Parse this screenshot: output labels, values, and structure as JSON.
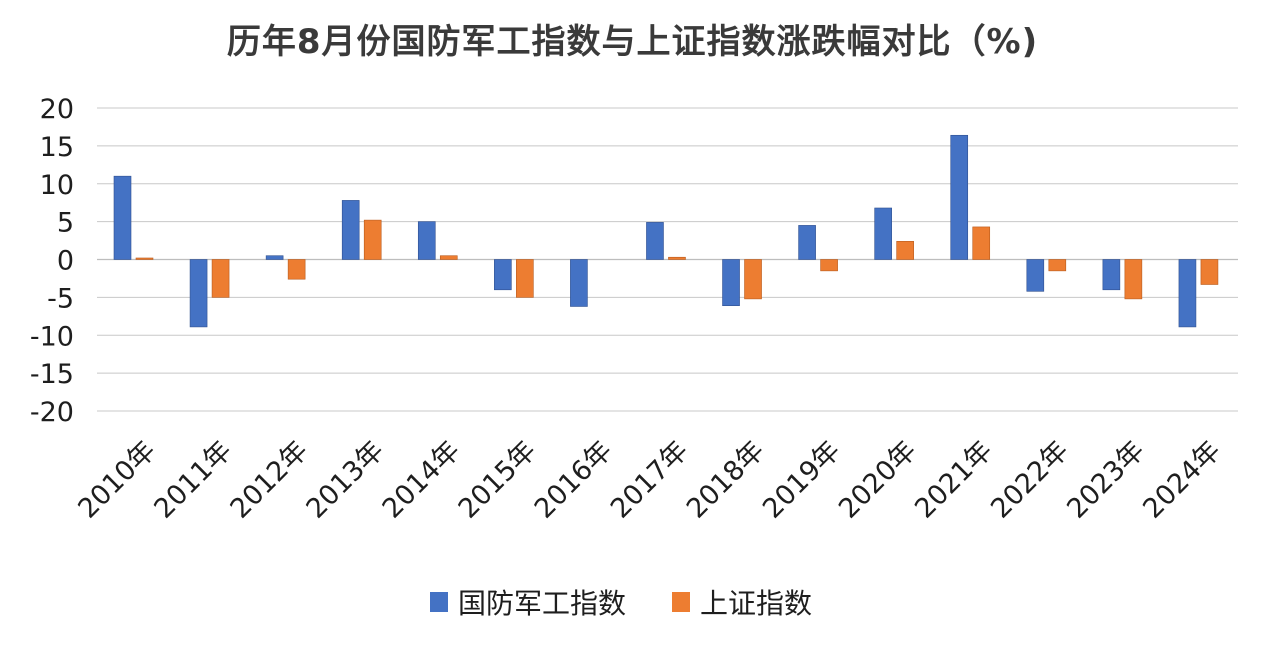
{
  "chart_data": {
    "type": "bar",
    "title": "历年8月份国防军工指数与上证指数涨跌幅对比（%)",
    "categories": [
      "2010年",
      "2011年",
      "2012年",
      "2013年",
      "2014年",
      "2015年",
      "2016年",
      "2017年",
      "2018年",
      "2019年",
      "2020年",
      "2021年",
      "2022年",
      "2023年",
      "2024年"
    ],
    "series": [
      {
        "name": "国防军工指数",
        "color": "#4472C4",
        "values": [
          11.0,
          -8.9,
          0.5,
          7.8,
          5.0,
          -4.0,
          -6.2,
          4.9,
          -6.1,
          4.5,
          6.8,
          16.4,
          -4.2,
          -4.0,
          -8.9
        ]
      },
      {
        "name": "上证指数",
        "color": "#ED7D31",
        "values": [
          0.2,
          -5.0,
          -2.6,
          5.2,
          0.5,
          -5.0,
          0.0,
          0.3,
          -5.2,
          -1.5,
          2.4,
          4.3,
          -1.5,
          -5.2,
          -3.3
        ]
      }
    ],
    "yticks": [
      "20",
      "15",
      "10",
      "5",
      "0",
      "-5",
      "-10",
      "-15",
      "-20"
    ],
    "ylim": [
      -20,
      20
    ],
    "grid": true,
    "legend_position": "bottom"
  }
}
